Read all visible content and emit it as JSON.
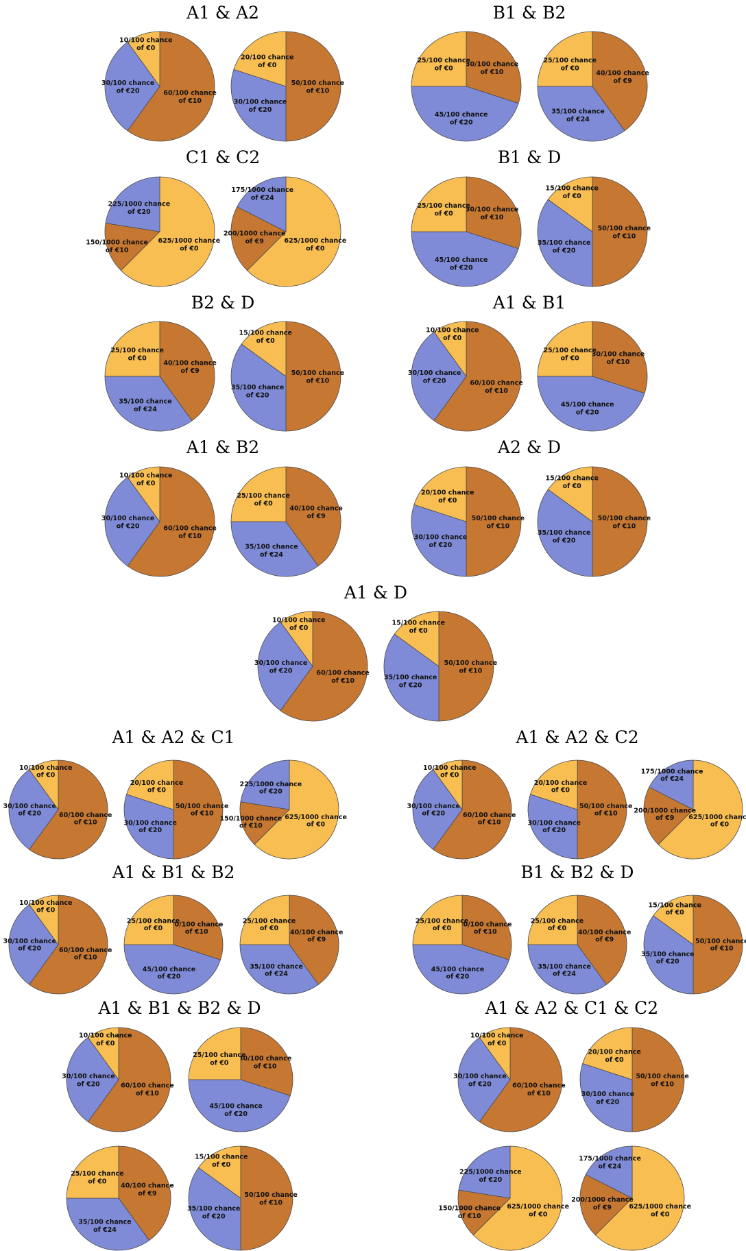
{
  "colors": {
    "zero": "#F9BE52",
    "ten": "#C67731",
    "twenty": "#7F8BD6",
    "stroke": "#4a4a4a"
  },
  "pies": {
    "A1": {
      "segments": [
        {
          "num": 60,
          "den": 100,
          "prize": "€10",
          "color": "ten"
        },
        {
          "num": 30,
          "den": 100,
          "prize": "€20",
          "color": "twenty"
        },
        {
          "num": 10,
          "den": 100,
          "prize": "€0",
          "color": "zero"
        }
      ]
    },
    "A2": {
      "segments": [
        {
          "num": 50,
          "den": 100,
          "prize": "€10",
          "color": "ten"
        },
        {
          "num": 30,
          "den": 100,
          "prize": "€20",
          "color": "twenty"
        },
        {
          "num": 20,
          "den": 100,
          "prize": "€0",
          "color": "zero"
        }
      ]
    },
    "B1": {
      "segments": [
        {
          "num": 30,
          "den": 100,
          "prize": "€10",
          "color": "ten"
        },
        {
          "num": 45,
          "den": 100,
          "prize": "€20",
          "color": "twenty"
        },
        {
          "num": 25,
          "den": 100,
          "prize": "€0",
          "color": "zero"
        }
      ]
    },
    "B2": {
      "segments": [
        {
          "num": 40,
          "den": 100,
          "prize": "€9",
          "color": "ten"
        },
        {
          "num": 35,
          "den": 100,
          "prize": "€24",
          "color": "twenty"
        },
        {
          "num": 25,
          "den": 100,
          "prize": "€0",
          "color": "zero"
        }
      ]
    },
    "C1": {
      "segments": [
        {
          "num": 625,
          "den": 1000,
          "prize": "€0",
          "color": "zero",
          "start": 0
        },
        {
          "num": 150,
          "den": 1000,
          "prize": "€10",
          "color": "ten"
        },
        {
          "num": 225,
          "den": 1000,
          "prize": "€20",
          "color": "twenty"
        }
      ]
    },
    "C2": {
      "segments": [
        {
          "num": 625,
          "den": 1000,
          "prize": "€0",
          "color": "zero",
          "start": 0
        },
        {
          "num": 200,
          "den": 1000,
          "prize": "€9",
          "color": "ten"
        },
        {
          "num": 175,
          "den": 1000,
          "prize": "€24",
          "color": "twenty"
        }
      ]
    },
    "D": {
      "segments": [
        {
          "num": 50,
          "den": 100,
          "prize": "€10",
          "color": "ten"
        },
        {
          "num": 35,
          "den": 100,
          "prize": "€20",
          "color": "twenty"
        },
        {
          "num": 15,
          "den": 100,
          "prize": "€0",
          "color": "zero"
        }
      ]
    }
  },
  "chance_word": "chance",
  "of_word": "of",
  "chart_data": {
    "type": "pie",
    "groups": [
      {
        "title": "A1 & A2",
        "lotteries": [
          "A1",
          "A2"
        ]
      },
      {
        "title": "B1 & B2",
        "lotteries": [
          "B1",
          "B2"
        ]
      },
      {
        "title": "C1 & C2",
        "lotteries": [
          "C1",
          "C2"
        ]
      },
      {
        "title": "B1 & D",
        "lotteries": [
          "B1",
          "D"
        ]
      },
      {
        "title": "B2 & D",
        "lotteries": [
          "B2",
          "D"
        ]
      },
      {
        "title": "A1 & B1",
        "lotteries": [
          "A1",
          "B1"
        ]
      },
      {
        "title": "A1 & B2",
        "lotteries": [
          "A1",
          "B2"
        ]
      },
      {
        "title": "A2 & D",
        "lotteries": [
          "A2",
          "D"
        ]
      },
      {
        "title": "A1 & D",
        "lotteries": [
          "A1",
          "D"
        ]
      },
      {
        "title": "A1 & A2 & C1",
        "lotteries": [
          "A1",
          "A2",
          "C1"
        ]
      },
      {
        "title": "A1 & A2 & C2",
        "lotteries": [
          "A1",
          "A2",
          "C2"
        ]
      },
      {
        "title": "A1 & B1 & B2",
        "lotteries": [
          "A1",
          "B1",
          "B2"
        ]
      },
      {
        "title": "B1 & B2 & D",
        "lotteries": [
          "B1",
          "B2",
          "D"
        ]
      },
      {
        "title": "A1 & B1 & B2 & D",
        "lotteries": [
          "A1",
          "B1",
          "B2",
          "D"
        ]
      },
      {
        "title": "A1 & A2 & C1 & C2",
        "lotteries": [
          "A1",
          "A2",
          "C1",
          "C2"
        ]
      }
    ]
  }
}
